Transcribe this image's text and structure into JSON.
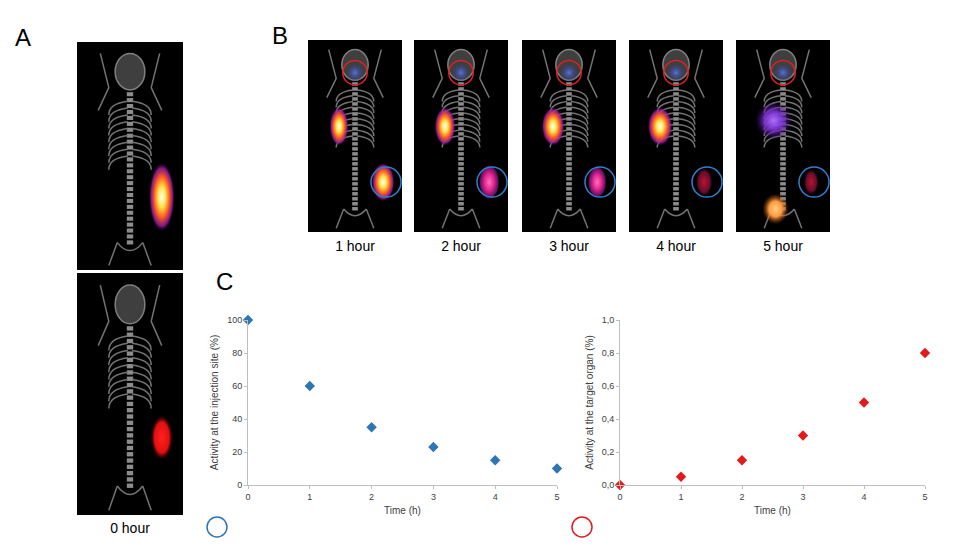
{
  "panel_labels": [
    "A",
    "B",
    "C"
  ],
  "panel_A": {
    "captions": [
      "0 hour"
    ]
  },
  "panel_B": {
    "captions": [
      "1 hour",
      "2 hour",
      "3 hour",
      "4 hour",
      "5 hour"
    ]
  },
  "chart_data": [
    {
      "type": "scatter",
      "x": [
        0,
        1,
        2,
        3,
        4,
        5
      ],
      "values": [
        100,
        60,
        35,
        23,
        15,
        10
      ],
      "color": "#2e75b6",
      "marker": "diamond",
      "xlabel": "Time (h)",
      "ylabel": "Activity at the injection site (%)",
      "xlim": [
        0,
        5
      ],
      "ylim": [
        0,
        100
      ],
      "xticks": [
        0,
        1,
        2,
        3,
        4,
        5
      ],
      "yticks": [
        0,
        20,
        40,
        60,
        80,
        100
      ],
      "grid": false
    },
    {
      "type": "scatter",
      "x": [
        0,
        1,
        2,
        3,
        4,
        5
      ],
      "values": [
        0,
        0.05,
        0.15,
        0.3,
        0.5,
        0.8
      ],
      "color": "#e31a1c",
      "marker": "diamond",
      "xlabel": "Time (h)",
      "ylabel": "Activity at the target organ (%)",
      "xlim": [
        0,
        5
      ],
      "ylim": [
        0,
        1
      ],
      "xticks": [
        0,
        1,
        2,
        3,
        4,
        5
      ],
      "yticks": [
        {
          "value": 0,
          "label": "0,0"
        },
        {
          "value": 0.2,
          "label": "0,2"
        },
        {
          "value": 0.4,
          "label": "0,4"
        },
        {
          "value": 0.6,
          "label": "0,6"
        },
        {
          "value": 0.8,
          "label": "0,8"
        },
        {
          "value": 1,
          "label": "1,0"
        }
      ],
      "grid": false
    }
  ]
}
